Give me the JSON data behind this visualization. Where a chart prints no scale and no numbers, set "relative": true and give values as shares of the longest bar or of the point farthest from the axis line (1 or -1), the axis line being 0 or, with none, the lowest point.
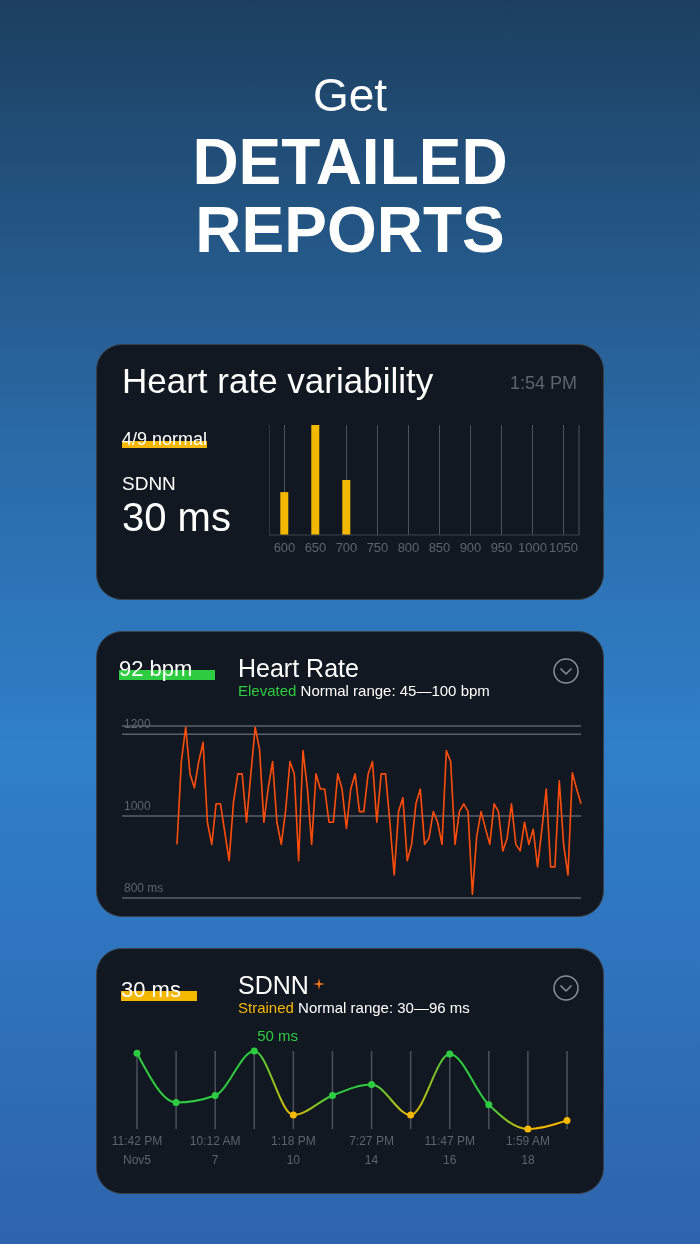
{
  "chart_data": [
    {
      "type": "other",
      "title": "Get",
      "subtitle": "DETAILED REPORTS"
    },
    {
      "type": "bar",
      "title": "Heart rate variability",
      "subtitle": "1:54 PM",
      "annotations": [
        "4/9 normal",
        "SDNN",
        "30 ms"
      ],
      "categories": [
        "600",
        "650",
        "700",
        "750",
        "800",
        "850",
        "900",
        "950",
        "1000",
        "1050"
      ],
      "values": [
        0.39,
        1,
        0.5,
        0,
        0,
        0,
        0,
        0,
        0,
        0
      ],
      "color": "#f5b800",
      "relative": true,
      "grid": "x"
    },
    {
      "type": "line",
      "title": "Heart Rate",
      "annotations": [
        "92 bpm",
        "Elevated",
        "Normal range: 45—100 bpm"
      ],
      "categories": [
        null,
        null,
        null,
        null,
        null,
        null,
        null,
        null,
        null,
        null,
        null,
        null,
        null,
        null,
        null,
        null,
        null,
        null,
        null,
        null,
        null,
        null,
        null,
        null,
        null,
        null,
        null,
        null,
        null,
        null,
        null,
        null,
        null,
        null,
        null,
        null,
        null,
        null,
        null,
        null,
        null,
        null,
        null,
        null,
        null,
        null,
        null,
        null,
        null,
        null,
        null,
        null,
        null,
        null,
        null,
        null,
        null,
        null,
        null,
        null,
        null,
        null,
        null,
        null,
        null,
        null,
        null,
        null,
        null,
        null,
        null,
        null,
        null,
        null,
        null,
        null,
        null,
        null,
        null,
        null,
        null,
        null,
        null,
        null,
        null,
        null,
        null,
        null,
        null,
        null,
        null,
        null,
        null,
        null
      ],
      "values": [
        931,
        1133,
        1217,
        1103,
        1069,
        1133,
        1180,
        985,
        931,
        1030,
        1030,
        961,
        891,
        1034,
        1103,
        1103,
        985,
        1103,
        1217,
        1163,
        985,
        1069,
        1133,
        985,
        931,
        1013,
        1133,
        1103,
        891,
        1160,
        1069,
        931,
        1103,
        1066,
        1066,
        985,
        985,
        1103,
        1066,
        970,
        1066,
        1103,
        1011,
        1011,
        1103,
        1133,
        985,
        1103,
        1103,
        985,
        856,
        1011,
        1045,
        891,
        931,
        1030,
        1066,
        931,
        946,
        1011,
        985,
        931,
        1160,
        1133,
        931,
        1011,
        1030,
        1011,
        809,
        951,
        1011,
        970,
        931,
        1030,
        1011,
        915,
        946,
        1030,
        931,
        915,
        985,
        931,
        968,
        876,
        968,
        1066,
        876,
        876,
        1086,
        931,
        856,
        1106,
        1066,
        1030
      ],
      "color": "#ff4d0a",
      "ylim": [
        800,
        1220
      ],
      "yticks": [
        {
          "value": 800,
          "label": "800 ms"
        },
        1000,
        1200
      ],
      "grid": "y",
      "tick_labels": "y",
      "marker": "none"
    },
    {
      "type": "line",
      "title": "SDNN",
      "annotations": [
        "30 ms",
        "Strained",
        "Normal range: 30—96 ms",
        "50 ms"
      ],
      "categories": [
        "11:42 PM\nNov5",
        null,
        "10:12 AM\n7",
        null,
        "1:18 PM\n10",
        null,
        "7:27 PM\n14",
        null,
        "11:47 PM\n16",
        null,
        "1:59 AM\n18",
        null
      ],
      "values": [
        0.97,
        0.34,
        0.43,
        1,
        0.18,
        0.43,
        0.57,
        0.18,
        0.96,
        0.31,
        0,
        0.11
      ],
      "color": "#2ecc40",
      "colors": [
        "#2ecc40",
        "#2ecc40",
        "#2ecc40",
        "#2ecc40",
        "#f5b800",
        "#2ecc40",
        "#2ecc40",
        "#f5b800",
        "#2ecc40",
        "#2ecc40",
        "#f5b800",
        "#f5b800"
      ],
      "relative": true,
      "grid": "x",
      "marker": "circle"
    }
  ]
}
